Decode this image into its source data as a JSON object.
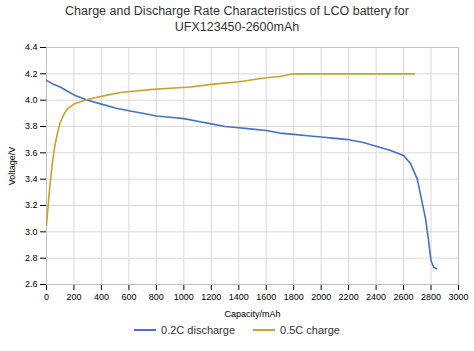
{
  "chart_data": {
    "type": "line",
    "title": "Charge and Discharge Rate Characteristics of LCO battery for\nUFX123450-2600mAh",
    "xlabel": "Capacity/mAh",
    "ylabel": "Voltage/V",
    "xlim": [
      0,
      3000
    ],
    "ylim": [
      2.6,
      4.4
    ],
    "xticks": [
      0,
      200,
      400,
      600,
      800,
      1000,
      1200,
      1400,
      1600,
      1800,
      2000,
      2200,
      2400,
      2600,
      2800,
      3000
    ],
    "yticks": [
      2.6,
      2.8,
      {
        "value": 3.0,
        "label": "3.0"
      },
      3.2,
      3.4,
      3.6,
      3.8,
      {
        "value": 4.0,
        "label": "4.0"
      },
      4.2,
      4.4
    ],
    "grid": true,
    "legend": "bottom",
    "series": [
      {
        "name": "0.2C discharge",
        "color": "#4472c4",
        "x": [
          0,
          50,
          100,
          150,
          200,
          300,
          400,
          500,
          600,
          700,
          800,
          900,
          1000,
          1100,
          1200,
          1300,
          1400,
          1500,
          1600,
          1700,
          1800,
          1900,
          2000,
          2100,
          2200,
          2300,
          2400,
          2500,
          2600,
          2650,
          2700,
          2730,
          2760,
          2780,
          2800,
          2820,
          2840
        ],
        "values": [
          4.15,
          4.12,
          4.1,
          4.07,
          4.04,
          4.0,
          3.97,
          3.94,
          3.92,
          3.9,
          3.88,
          3.87,
          3.86,
          3.84,
          3.82,
          3.8,
          3.79,
          3.78,
          3.77,
          3.75,
          3.74,
          3.73,
          3.72,
          3.71,
          3.7,
          3.68,
          3.65,
          3.62,
          3.58,
          3.52,
          3.4,
          3.25,
          3.1,
          2.95,
          2.78,
          2.73,
          2.72
        ]
      },
      {
        "name": "0.5C charge",
        "color": "#c9a227",
        "x": [
          0,
          20,
          40,
          60,
          80,
          100,
          130,
          160,
          200,
          280,
          360,
          450,
          550,
          650,
          750,
          900,
          1050,
          1200,
          1400,
          1600,
          1700,
          1800,
          1900,
          2000,
          2100,
          2200,
          2300,
          2400,
          2500,
          2600,
          2650,
          2680
        ],
        "values": [
          3.05,
          3.3,
          3.5,
          3.65,
          3.75,
          3.83,
          3.9,
          3.94,
          3.97,
          4.0,
          4.02,
          4.04,
          4.06,
          4.07,
          4.08,
          4.09,
          4.1,
          4.12,
          4.14,
          4.17,
          4.18,
          4.2,
          4.2,
          4.2,
          4.2,
          4.2,
          4.2,
          4.2,
          4.2,
          4.2,
          4.2,
          4.2
        ]
      }
    ]
  }
}
